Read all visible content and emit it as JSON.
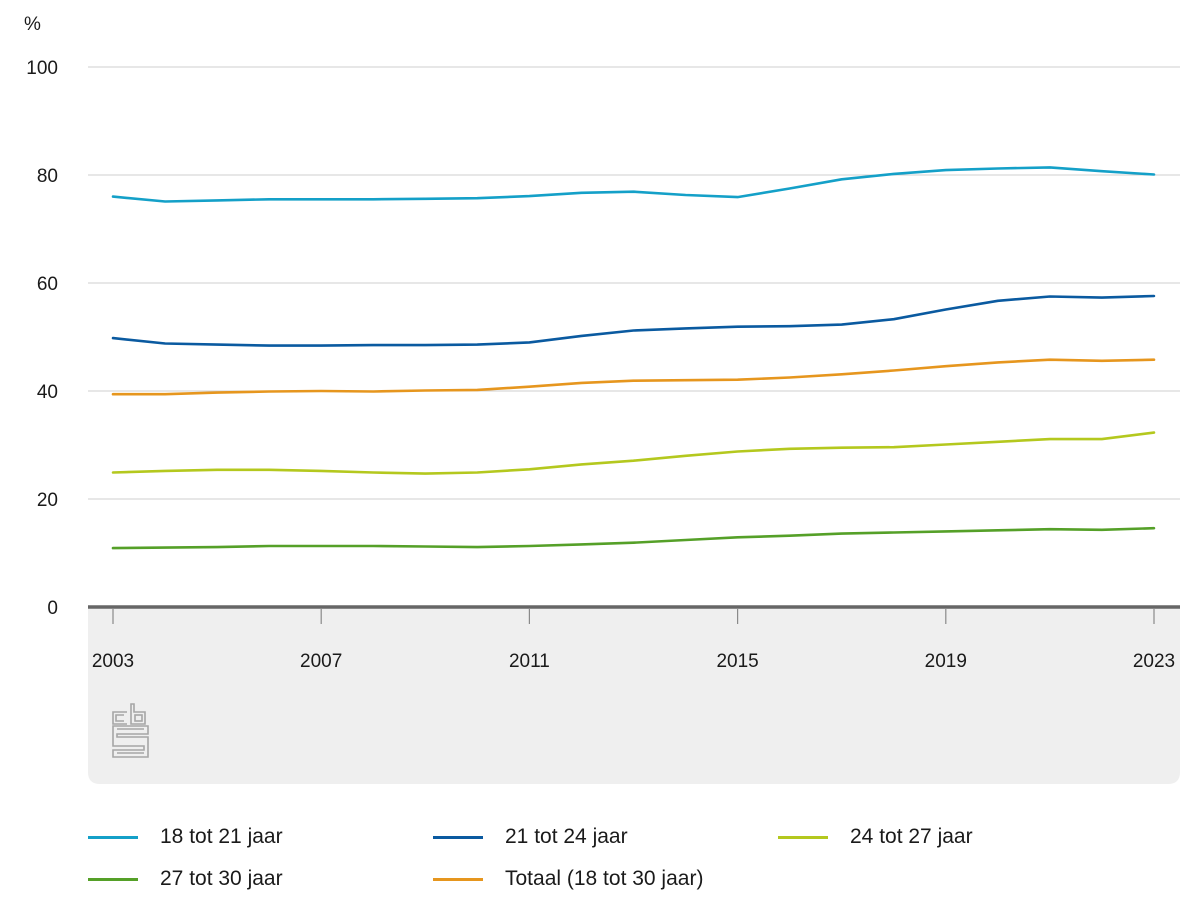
{
  "chart_data": {
    "type": "line",
    "title": "",
    "xlabel": "",
    "ylabel": "%",
    "ylim": [
      0,
      100
    ],
    "yticks": [
      "0",
      "20",
      "40",
      "60",
      "80",
      "100"
    ],
    "xlim": [
      2003,
      2023
    ],
    "xticks": [
      "2003",
      "2007",
      "2011",
      "2015",
      "2019",
      "2023"
    ],
    "grid": true,
    "legend_position": "bottom",
    "x": [
      2003,
      2004,
      2005,
      2006,
      2007,
      2008,
      2009,
      2010,
      2011,
      2012,
      2013,
      2014,
      2015,
      2016,
      2017,
      2018,
      2019,
      2020,
      2021,
      2022,
      2023
    ],
    "series": [
      {
        "name": "18 tot 21 jaar",
        "color": "#14a0c8",
        "values": [
          76.0,
          75.1,
          75.3,
          75.5,
          75.5,
          75.5,
          75.6,
          75.7,
          76.1,
          76.7,
          76.9,
          76.3,
          75.9,
          77.5,
          79.2,
          80.2,
          80.9,
          81.2,
          81.4,
          80.7,
          80.1
        ]
      },
      {
        "name": "21 tot 24 jaar",
        "color": "#0a5aa0",
        "values": [
          49.8,
          48.8,
          48.6,
          48.4,
          48.4,
          48.5,
          48.5,
          48.6,
          49.0,
          50.2,
          51.2,
          51.6,
          51.9,
          52.0,
          52.3,
          53.3,
          55.1,
          56.7,
          57.5,
          57.3,
          57.6
        ]
      },
      {
        "name": "24 tot 27 jaar",
        "color": "#b4c81e",
        "values": [
          24.9,
          25.2,
          25.4,
          25.4,
          25.2,
          24.9,
          24.7,
          24.9,
          25.5,
          26.4,
          27.1,
          28.0,
          28.8,
          29.3,
          29.5,
          29.6,
          30.1,
          30.6,
          31.1,
          31.1,
          32.3
        ]
      },
      {
        "name": "27 tot 30 jaar",
        "color": "#55a028",
        "values": [
          10.9,
          11.0,
          11.1,
          11.3,
          11.3,
          11.3,
          11.2,
          11.1,
          11.3,
          11.6,
          11.9,
          12.4,
          12.9,
          13.2,
          13.6,
          13.8,
          14.0,
          14.2,
          14.4,
          14.3,
          14.6
        ]
      },
      {
        "name": "Totaal (18 tot 30 jaar)",
        "color": "#e6961e",
        "values": [
          39.4,
          39.4,
          39.7,
          39.9,
          40.0,
          39.9,
          40.1,
          40.2,
          40.8,
          41.5,
          41.9,
          42.0,
          42.1,
          42.5,
          43.1,
          43.8,
          44.6,
          45.3,
          45.8,
          45.6,
          45.8
        ]
      }
    ],
    "legend_order": [
      0,
      1,
      2,
      3,
      4
    ]
  }
}
